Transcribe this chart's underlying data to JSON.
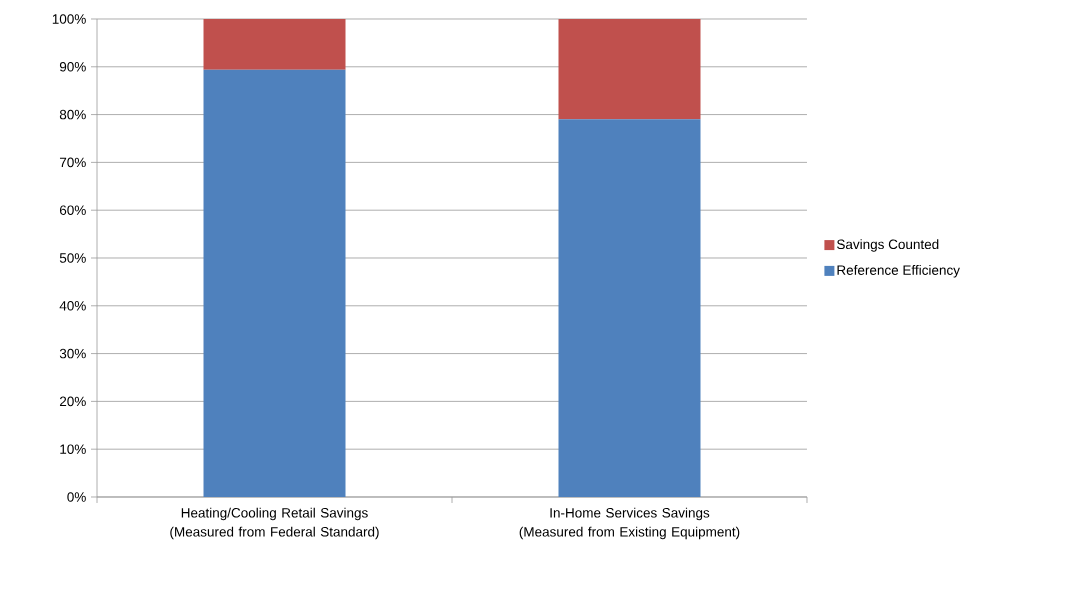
{
  "chart_data": {
    "type": "bar",
    "stacked": true,
    "categories": [
      "Heating/Cooling Retail Savings (Measured from Federal Standard)",
      "In-Home Services Savings (Measured from Existing Equipment)"
    ],
    "series": [
      {
        "name": "Reference Efficiency",
        "color": "#4f81bd",
        "values": [
          89.4,
          79.0
        ]
      },
      {
        "name": "Savings Counted",
        "color": "#c0504d",
        "values": [
          10.6,
          21.0
        ]
      }
    ],
    "ylim": [
      0,
      100
    ],
    "yticks": [
      {
        "value": 0,
        "label": "0%"
      },
      {
        "value": 10,
        "label": "10%"
      },
      {
        "value": 20,
        "label": "20%"
      },
      {
        "value": 30,
        "label": "30%"
      },
      {
        "value": 40,
        "label": "40%"
      },
      {
        "value": 50,
        "label": "50%"
      },
      {
        "value": 60,
        "label": "60%"
      },
      {
        "value": 70,
        "label": "70%"
      },
      {
        "value": 80,
        "label": "80%"
      },
      {
        "value": 90,
        "label": "90%"
      },
      {
        "value": 100,
        "label": "100%"
      }
    ],
    "grid": "y",
    "legend": "right"
  }
}
